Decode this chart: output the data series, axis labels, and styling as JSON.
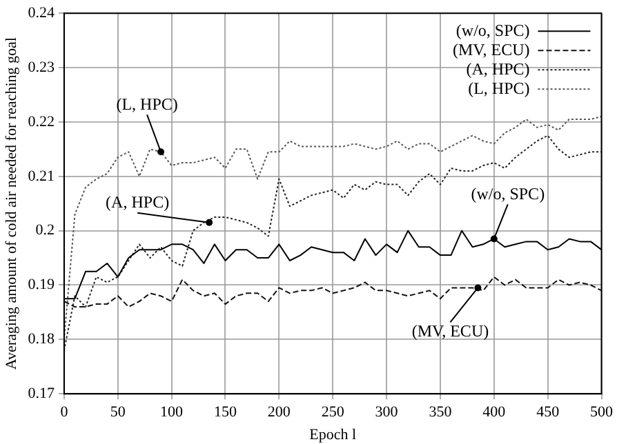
{
  "chart_data": {
    "type": "line",
    "xlabel": "Epoch l",
    "ylabel": "Averaging amount of cold air needed for reaching goal",
    "x": [
      0,
      10,
      20,
      30,
      40,
      50,
      60,
      70,
      80,
      90,
      100,
      110,
      120,
      130,
      140,
      150,
      160,
      170,
      180,
      190,
      200,
      210,
      220,
      230,
      240,
      250,
      260,
      270,
      280,
      290,
      300,
      310,
      320,
      330,
      340,
      350,
      360,
      370,
      380,
      390,
      400,
      410,
      420,
      430,
      440,
      450,
      460,
      470,
      480,
      490,
      500
    ],
    "series": [
      {
        "name": "(w/o, SPC)",
        "color": "#000000",
        "line_style": "solid",
        "values": [
          0.1875,
          0.1875,
          0.1925,
          0.1925,
          0.194,
          0.1915,
          0.195,
          0.1965,
          0.1965,
          0.1965,
          0.1975,
          0.1975,
          0.1965,
          0.194,
          0.1975,
          0.1945,
          0.1965,
          0.1965,
          0.195,
          0.195,
          0.1975,
          0.1945,
          0.1955,
          0.197,
          0.1965,
          0.196,
          0.196,
          0.1945,
          0.1985,
          0.1955,
          0.1975,
          0.196,
          0.2,
          0.197,
          0.197,
          0.1955,
          0.1955,
          0.2,
          0.197,
          0.1975,
          0.1985,
          0.197,
          0.1975,
          0.198,
          0.198,
          0.1965,
          0.197,
          0.1985,
          0.198,
          0.198,
          0.1965
        ]
      },
      {
        "name": "(MV, ECU)",
        "color": "#111111",
        "line_style": "dashed",
        "values": [
          0.187,
          0.186,
          0.186,
          0.1865,
          0.1865,
          0.188,
          0.186,
          0.187,
          0.1885,
          0.188,
          0.187,
          0.191,
          0.189,
          0.188,
          0.1885,
          0.1865,
          0.188,
          0.1885,
          0.1885,
          0.187,
          0.1895,
          0.1885,
          0.189,
          0.189,
          0.1895,
          0.1885,
          0.189,
          0.1895,
          0.1905,
          0.189,
          0.189,
          0.1885,
          0.188,
          0.1885,
          0.189,
          0.1875,
          0.1895,
          0.1895,
          0.1895,
          0.189,
          0.1915,
          0.19,
          0.191,
          0.1895,
          0.1895,
          0.1895,
          0.191,
          0.19,
          0.1905,
          0.19,
          0.189
        ]
      },
      {
        "name": "(A, HPC)",
        "color": "#222222",
        "line_style": "dotted",
        "values": [
          0.178,
          0.188,
          0.186,
          0.1915,
          0.1905,
          0.1915,
          0.1945,
          0.1975,
          0.195,
          0.197,
          0.1945,
          0.1935,
          0.2,
          0.2015,
          0.2025,
          0.2025,
          0.202,
          0.2015,
          0.2005,
          0.199,
          0.2095,
          0.2045,
          0.2055,
          0.2065,
          0.207,
          0.2075,
          0.206,
          0.2085,
          0.2075,
          0.209,
          0.2085,
          0.2085,
          0.2065,
          0.209,
          0.2105,
          0.2085,
          0.2115,
          0.211,
          0.211,
          0.212,
          0.2125,
          0.2115,
          0.2135,
          0.215,
          0.2165,
          0.2175,
          0.215,
          0.2135,
          0.214,
          0.2145,
          0.2145
        ]
      },
      {
        "name": "(L, HPC)",
        "color": "#555555",
        "line_style": "dotted",
        "values": [
          0.18,
          0.203,
          0.208,
          0.2095,
          0.2105,
          0.2135,
          0.2145,
          0.21,
          0.215,
          0.2145,
          0.212,
          0.2125,
          0.2125,
          0.213,
          0.2135,
          0.2115,
          0.215,
          0.215,
          0.2095,
          0.2145,
          0.2145,
          0.2165,
          0.2155,
          0.2155,
          0.2155,
          0.2155,
          0.2155,
          0.216,
          0.2155,
          0.215,
          0.2155,
          0.2165,
          0.215,
          0.216,
          0.216,
          0.2145,
          0.2155,
          0.2165,
          0.2175,
          0.2165,
          0.216,
          0.218,
          0.219,
          0.2205,
          0.219,
          0.2195,
          0.2185,
          0.2205,
          0.2205,
          0.2205,
          0.221
        ]
      }
    ],
    "annotations": [
      {
        "text": "(L, HPC)",
        "x": 90,
        "y": 0.2145
      },
      {
        "text": "(A, HPC)",
        "x": 135,
        "y": 0.2015
      },
      {
        "text": "(w/o, SPC)",
        "x": 400,
        "y": 0.1985
      },
      {
        "text": "(MV, ECU)",
        "x": 385,
        "y": 0.1895
      }
    ],
    "xlim": [
      0,
      500
    ],
    "xticks": [
      0,
      50,
      100,
      150,
      200,
      250,
      300,
      350,
      400,
      450,
      500
    ],
    "ylim": [
      0.17,
      0.24
    ],
    "yticks": [
      {
        "value": 0.17,
        "label": "0.17"
      },
      {
        "value": 0.18,
        "label": "0.18"
      },
      {
        "value": 0.19,
        "label": "0.19"
      },
      {
        "value": 0.2,
        "label": "0.2"
      },
      {
        "value": 0.21,
        "label": "0.21"
      },
      {
        "value": 0.22,
        "label": "0.22"
      },
      {
        "value": 0.23,
        "label": "0.23"
      },
      {
        "value": 0.24,
        "label": "0.24"
      }
    ],
    "grid": true,
    "legend": "top right",
    "marker": "none"
  }
}
